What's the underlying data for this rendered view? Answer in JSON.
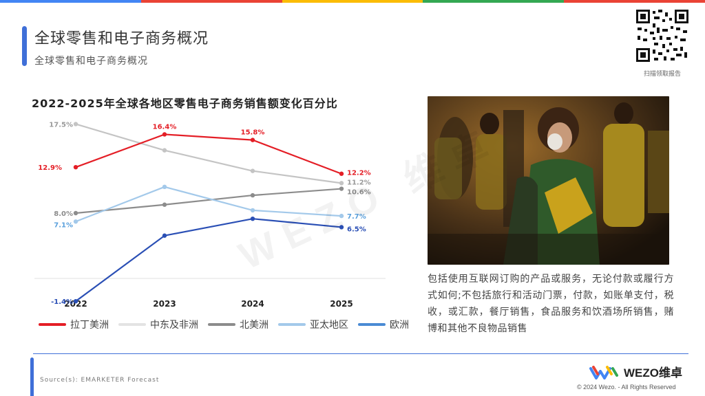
{
  "header": {
    "title": "全球零售和电子商务概况",
    "subtitle": "全球零售和电子商务概况",
    "qr_label": "扫描领取报告"
  },
  "brand_colors": [
    "#4285f4",
    "#ea4335",
    "#fbbc05",
    "#34a853"
  ],
  "watermark": "WEZO 维卓",
  "chart_data": {
    "type": "line",
    "title": "2022-2025年全球各地区零售电子商务销售额变化百分比",
    "categories": [
      "2022",
      "2023",
      "2024",
      "2025"
    ],
    "ylim": [
      -3,
      19
    ],
    "grid": false,
    "legend_position": "bottom",
    "series": [
      {
        "name": "拉丁美洲",
        "color": "#e41e26",
        "values": [
          12.9,
          16.4,
          15.8,
          12.2
        ],
        "labels": [
          "12.9%",
          "16.4%",
          "15.8%",
          "12.2%"
        ]
      },
      {
        "name": "中东及非洲",
        "color": "#c4c4c4",
        "values": [
          17.5,
          14.7,
          12.5,
          11.2
        ],
        "labels": [
          "17.5%",
          "",
          "",
          "11.2%"
        ]
      },
      {
        "name": "北美洲",
        "color": "#8c8c8c",
        "values": [
          8.0,
          8.9,
          9.9,
          10.6
        ],
        "labels": [
          "8.0%",
          "",
          "",
          "10.6%"
        ]
      },
      {
        "name": "亚太地区",
        "color": "#a3c9ea",
        "values": [
          7.1,
          10.8,
          8.3,
          7.7
        ],
        "labels": [
          "7.1%",
          "",
          "",
          "7.7%"
        ]
      },
      {
        "name": "欧洲",
        "color": "#2a4fb5",
        "values": [
          -1.4,
          5.6,
          7.4,
          6.5
        ],
        "labels": [
          "-1.4%",
          "",
          "",
          "6.5%"
        ]
      }
    ],
    "legend": [
      {
        "name": "拉丁美洲",
        "color": "#e41e26"
      },
      {
        "name": "中东及非洲",
        "color": "#e3e3e3"
      },
      {
        "name": "北美洲",
        "color": "#8c8c8c"
      },
      {
        "name": "亚太地区",
        "color": "#a3c9ea"
      },
      {
        "name": "欧洲",
        "color": "#4a8bd4"
      }
    ]
  },
  "description": "包括使用互联网订购的产品或服务，无论付款或履行方式如何;不包括旅行和活动门票，付款，如账单支付，税收，或汇款，餐厅销售，食品服务和饮酒场所销售，赌博和其他不良物品销售",
  "footer": {
    "source": "Source(s): EMARKETER Forecast",
    "logo_text": "WEZO维卓",
    "copyright": "© 2024 Wezo. - All Rights Reserved"
  }
}
